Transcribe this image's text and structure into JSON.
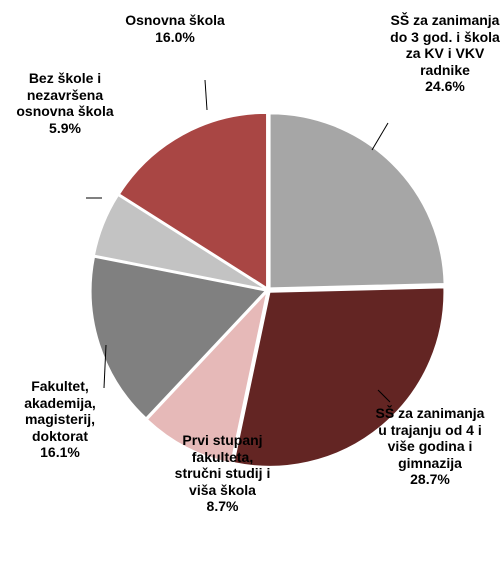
{
  "chart_data": {
    "type": "pie",
    "categories": [
      "SŠ za zanimanja do 3 god. i škola za KV i VKV radnike",
      "SŠ za zanimanja u trajanju od 4 i više godina i gimnazija",
      "Prvi stupanj fakulteta, stručni studij i viša škola",
      "Fakultet, akademija, magisterij, doktorat",
      "Bez škole i nezavršena osnovna škola",
      "Osnovna škola"
    ],
    "values": [
      24.6,
      28.7,
      8.7,
      16.1,
      5.9,
      16.0
    ],
    "value_labels": [
      "24.6%",
      "28.7%",
      "8.7%",
      "16.1%",
      "5.9%",
      "16.0%"
    ],
    "colors": [
      "#a6a6a6",
      "#632523",
      "#e6b9b8",
      "#808080",
      "#c3c3c3",
      "#a94644"
    ]
  }
}
